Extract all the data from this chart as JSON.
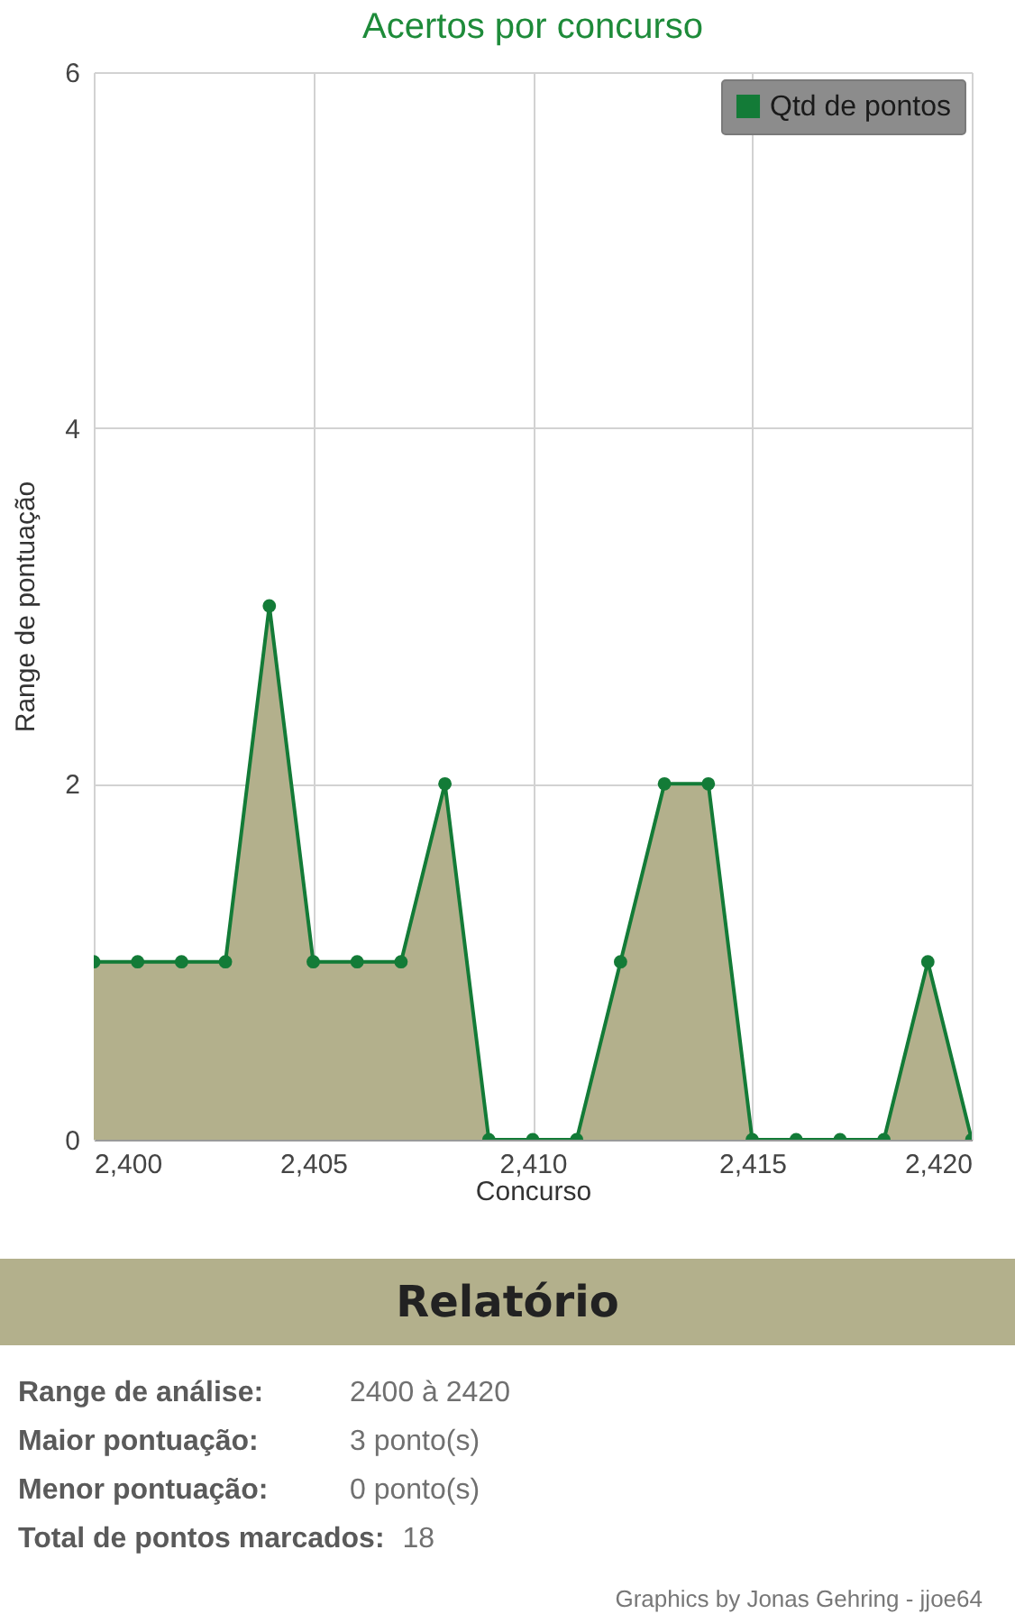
{
  "chart_data": [
    {
      "type": "area",
      "title": "Acertos por concurso",
      "xlabel": "Concurso",
      "ylabel": "Range de pontuação",
      "x": [
        2400,
        2401,
        2402,
        2403,
        2404,
        2405,
        2406,
        2407,
        2408,
        2409,
        2410,
        2411,
        2412,
        2413,
        2414,
        2415,
        2416,
        2417,
        2418,
        2419,
        2420
      ],
      "series": [
        {
          "name": "Qtd de pontos",
          "color": "#137b37",
          "values": [
            1,
            1,
            1,
            1,
            3,
            1,
            1,
            1,
            2,
            0,
            0,
            0,
            1,
            2,
            2,
            0,
            0,
            0,
            0,
            1,
            0
          ]
        }
      ],
      "xlim": [
        2400,
        2420
      ],
      "ylim": [
        0,
        6
      ],
      "xticks": [
        {
          "value": 2400,
          "label": "2,400"
        },
        {
          "value": 2405,
          "label": "2,405"
        },
        {
          "value": 2410,
          "label": "2,410"
        },
        {
          "value": 2415,
          "label": "2,415"
        },
        {
          "value": 2420,
          "label": "2,420"
        }
      ],
      "yticks": [
        0,
        2,
        4,
        6
      ],
      "grid": true,
      "legend": "top right",
      "marker": "circle",
      "line_style": "solid"
    },
    {
      "type": "other",
      "title": "Relatório",
      "annotations": [
        "Range de análise:",
        "2400 à 2420",
        "Maior pontuação:",
        "3 ponto(s)",
        "Menor pontuação:",
        "0 ponto(s)",
        "Total de pontos marcados:",
        "18",
        "Graphics by Jonas Gehring - jjoe64"
      ]
    }
  ]
}
